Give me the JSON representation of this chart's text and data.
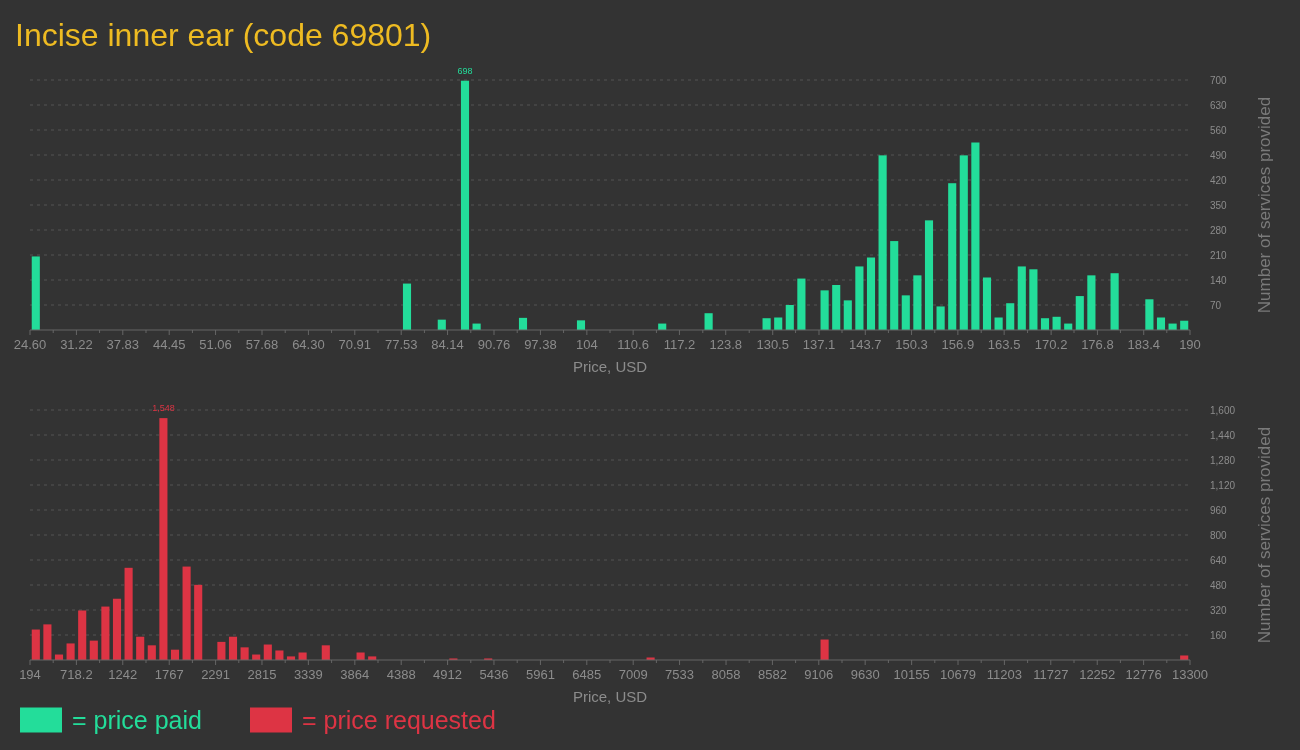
{
  "chart_data": [
    {
      "type": "histogram",
      "title": "Incise inner ear (code 69801)",
      "xlabel": "Price, USD",
      "ylabel": "Number of services provided",
      "bins": [
        24.6,
        26.25,
        27.91,
        29.56,
        31.22,
        32.87,
        34.52,
        36.18,
        37.83,
        39.49,
        41.14,
        42.79,
        44.45,
        46.1,
        47.76,
        49.41,
        51.06,
        52.72,
        54.37,
        56.03,
        57.68,
        59.33,
        60.99,
        62.64,
        64.3,
        65.95,
        67.6,
        69.26,
        70.91,
        72.57,
        74.22,
        75.87,
        77.53,
        79.18,
        80.84,
        82.49,
        84.14,
        85.8,
        87.45,
        89.11,
        90.76,
        92.41,
        94.07,
        95.72,
        97.38,
        99.03,
        100.68,
        102.34,
        103.99,
        105.65,
        107.3,
        108.95,
        110.61,
        112.26,
        113.92,
        115.57,
        117.22,
        118.88,
        120.53,
        122.19,
        123.84,
        125.49,
        127.15,
        128.8,
        130.46,
        132.11,
        133.76,
        135.42,
        137.07,
        138.73,
        140.38,
        142.03,
        143.69,
        145.34,
        147.0,
        148.65,
        150.3,
        151.96,
        153.61,
        155.27,
        156.92,
        158.57,
        160.23,
        161.88,
        163.54,
        165.19,
        166.84,
        168.5,
        170.15,
        171.81,
        173.46,
        175.11,
        176.77,
        178.42,
        180.08,
        181.73,
        183.38,
        185.04,
        186.69,
        188.35,
        190
      ],
      "series": [
        {
          "name": "= price paid",
          "color": "#23dd9a",
          "values": [
            206,
            0,
            0,
            0,
            0,
            0,
            0,
            0,
            0,
            0,
            0,
            0,
            0,
            0,
            0,
            0,
            0,
            0,
            0,
            0,
            0,
            0,
            0,
            0,
            0,
            0,
            0,
            0,
            0,
            0,
            0,
            0,
            130,
            0,
            0,
            29,
            0,
            698,
            18,
            0,
            0,
            0,
            34,
            0,
            0,
            0,
            0,
            27,
            0,
            0,
            0,
            0,
            0,
            0,
            18,
            0,
            0,
            0,
            47,
            0,
            0,
            0,
            0,
            33,
            35,
            70,
            144,
            0,
            111,
            126,
            83,
            178,
            203,
            489,
            249,
            97,
            153,
            307,
            66,
            411,
            489,
            525,
            147,
            35,
            75,
            178,
            170,
            33,
            37,
            18,
            95,
            153,
            0,
            159,
            0,
            0,
            86,
            35,
            18,
            26
          ],
          "value_labels": [
            null,
            null,
            null,
            null,
            null,
            null,
            null,
            null,
            null,
            null,
            null,
            null,
            null,
            null,
            null,
            null,
            null,
            null,
            null,
            null,
            null,
            null,
            null,
            null,
            null,
            null,
            null,
            null,
            null,
            null,
            null,
            null,
            null,
            null,
            null,
            null,
            null,
            "698",
            null,
            null,
            null,
            null,
            null,
            null,
            null,
            null,
            null,
            null,
            null,
            null,
            null,
            null,
            null,
            null,
            null,
            null,
            null,
            null,
            null,
            null,
            null,
            null,
            null,
            null,
            null,
            null,
            null,
            null,
            null,
            null,
            null,
            null,
            null,
            null,
            null,
            null,
            null,
            null,
            null,
            null,
            null,
            null,
            null,
            null,
            null,
            null,
            null,
            null,
            null,
            null,
            null,
            null,
            null,
            null,
            null,
            null,
            null,
            null,
            null,
            null
          ]
        }
      ],
      "xlim": [
        24.6,
        190
      ],
      "xticks": [
        {
          "value": 24.6,
          "label": "24.60"
        },
        {
          "value": 27.91,
          "label": null
        },
        31.22,
        {
          "value": 34.52,
          "label": null
        },
        37.83,
        {
          "value": 41.14,
          "label": null
        },
        44.45,
        {
          "value": 47.76,
          "label": null
        },
        51.06,
        {
          "value": 54.37,
          "label": null
        },
        57.68,
        {
          "value": 60.99,
          "label": null
        },
        {
          "value": 64.3,
          "label": "64.30"
        },
        {
          "value": 67.6,
          "label": null
        },
        70.91,
        {
          "value": 74.22,
          "label": null
        },
        77.53,
        {
          "value": 80.84,
          "label": null
        },
        84.14,
        {
          "value": 87.45,
          "label": null
        },
        90.76,
        {
          "value": 94.07,
          "label": null
        },
        97.38,
        {
          "value": 100.68,
          "label": null
        },
        104,
        {
          "value": 107.3,
          "label": null
        },
        110.6,
        {
          "value": 113.92,
          "label": null
        },
        117.2,
        {
          "value": 120.53,
          "label": null
        },
        123.8,
        {
          "value": 127.15,
          "label": null
        },
        130.5,
        {
          "value": 133.76,
          "label": null
        },
        137.1,
        {
          "value": 140.38,
          "label": null
        },
        143.7,
        {
          "value": 147.0,
          "label": null
        },
        150.3,
        {
          "value": 153.61,
          "label": null
        },
        156.9,
        {
          "value": 160.23,
          "label": null
        },
        163.5,
        {
          "value": 166.84,
          "label": null
        },
        170.2,
        {
          "value": 173.46,
          "label": null
        },
        176.8,
        {
          "value": 180.08,
          "label": null
        },
        183.4,
        {
          "value": 186.69,
          "label": null
        },
        190
      ],
      "ylim": [
        0,
        700
      ],
      "yticks": [
        70,
        140,
        210,
        280,
        350,
        420,
        490,
        560,
        630,
        700
      ],
      "grid": "y",
      "legend": "bottom left"
    },
    {
      "type": "histogram",
      "xlabel": "Price, USD",
      "ylabel": "Number of services provided",
      "bins": [
        194,
        325.1,
        456.1,
        587.2,
        718.2,
        849.3,
        980.4,
        1111.4,
        1242.5,
        1373.5,
        1504.6,
        1635.7,
        1766.7,
        1897.8,
        2028.8,
        2159.9,
        2291,
        2422,
        2553.1,
        2684.1,
        2815.2,
        2946.3,
        3077.3,
        3208.4,
        3339.4,
        3470.5,
        3601.6,
        3732.6,
        3863.7,
        3994.7,
        4125.8,
        4256.9,
        4387.9,
        4519,
        4650,
        4781.1,
        4912.2,
        5043.2,
        5174.3,
        5305.3,
        5436.4,
        5567.5,
        5698.5,
        5829.6,
        5960.6,
        6091.7,
        6222.8,
        6353.8,
        6484.9,
        6615.9,
        6747,
        6878.1,
        7009.1,
        7140.2,
        7271.2,
        7402.3,
        7533.4,
        7664.4,
        7795.5,
        7926.5,
        8057.6,
        8188.7,
        8319.7,
        8450.8,
        8581.8,
        8712.9,
        8844,
        8975,
        9106.1,
        9237.1,
        9368.2,
        9499.3,
        9630.3,
        9761.4,
        9892.4,
        10023.5,
        10154.6,
        10285.6,
        10416.7,
        10547.7,
        10678.8,
        10809.9,
        10940.9,
        11072,
        11203,
        11334.1,
        11465.2,
        11596.2,
        11727.3,
        11858.3,
        11989.4,
        12120.5,
        12251.5,
        12382.6,
        12513.6,
        12644.7,
        12775.8,
        12906.8,
        13037.9,
        13168.9,
        13300
      ],
      "series": [
        {
          "name": "= price requested",
          "color": "#dd3444",
          "values": [
            195,
            228,
            35,
            106,
            317,
            124,
            342,
            392,
            590,
            149,
            94,
            1548,
            66,
            598,
            481,
            0,
            116,
            149,
            81,
            35,
            99,
            61,
            23,
            48,
            0,
            94,
            0,
            0,
            48,
            23,
            0,
            0,
            0,
            0,
            0,
            0,
            10,
            0,
            0,
            10,
            0,
            0,
            0,
            0,
            0,
            0,
            0,
            0,
            0,
            0,
            0,
            0,
            0,
            16,
            0,
            0,
            0,
            0,
            0,
            0,
            0,
            0,
            0,
            0,
            0,
            0,
            0,
            0,
            131,
            0,
            0,
            0,
            0,
            0,
            0,
            0,
            0,
            0,
            0,
            0,
            0,
            0,
            0,
            0,
            0,
            0,
            0,
            0,
            0,
            0,
            0,
            0,
            0,
            0,
            0,
            0,
            0,
            0,
            0,
            29
          ],
          "value_labels": [
            null,
            null,
            null,
            null,
            null,
            null,
            null,
            null,
            null,
            null,
            null,
            "1,548",
            null,
            null,
            null,
            null,
            null,
            null,
            null,
            null,
            null,
            null,
            null,
            null,
            null,
            null,
            null,
            null,
            null,
            null,
            null,
            null,
            null,
            null,
            null,
            null,
            null,
            null,
            null,
            null,
            null,
            null,
            null,
            null,
            null,
            null,
            null,
            null,
            null,
            null,
            null,
            null,
            null,
            null,
            null,
            null,
            null,
            null,
            null,
            null,
            null,
            null,
            null,
            null,
            null,
            null,
            null,
            null,
            null,
            null,
            null,
            null,
            null,
            null,
            null,
            null,
            null,
            null,
            null,
            null,
            null,
            null,
            null,
            null,
            null,
            null,
            null,
            null,
            null,
            null,
            null,
            null,
            null,
            null,
            null,
            null,
            null,
            null,
            null,
            null
          ]
        }
      ],
      "xlim": [
        194,
        13300
      ],
      "xticks": [
        194,
        {
          "value": 456.1,
          "label": null
        },
        718.2,
        {
          "value": 980.4,
          "label": null
        },
        1242,
        {
          "value": 1504.6,
          "label": null
        },
        1767,
        {
          "value": 2028.8,
          "label": null
        },
        2291,
        {
          "value": 2553.1,
          "label": null
        },
        2815,
        {
          "value": 3077.3,
          "label": null
        },
        3339,
        {
          "value": 3601.6,
          "label": null
        },
        3864,
        {
          "value": 4125.8,
          "label": null
        },
        4388,
        {
          "value": 4650,
          "label": null
        },
        4912,
        {
          "value": 5174.3,
          "label": null
        },
        5436,
        {
          "value": 5698.5,
          "label": null
        },
        5961,
        {
          "value": 6222.8,
          "label": null
        },
        6485,
        {
          "value": 6747,
          "label": null
        },
        7009,
        {
          "value": 7271.2,
          "label": null
        },
        7533,
        {
          "value": 7795.5,
          "label": null
        },
        8058,
        {
          "value": 8319.7,
          "label": null
        },
        8582,
        {
          "value": 8844,
          "label": null
        },
        9106,
        {
          "value": 9368.2,
          "label": null
        },
        9630,
        {
          "value": 9892.4,
          "label": null
        },
        10155,
        {
          "value": 10416.7,
          "label": null
        },
        10679,
        {
          "value": 10940.9,
          "label": null
        },
        11203,
        {
          "value": 11465.2,
          "label": null
        },
        11727,
        {
          "value": 11989.4,
          "label": null
        },
        12252,
        {
          "value": 12513.6,
          "label": null
        },
        12776,
        {
          "value": 13037.9,
          "label": null
        },
        13300
      ],
      "ylim": [
        0,
        1600
      ],
      "yticks": [
        160,
        320,
        480,
        640,
        800,
        960,
        {
          "value": 1120,
          "label": "1,120"
        },
        {
          "value": 1280,
          "label": "1,280"
        },
        {
          "value": 1440,
          "label": "1,440"
        },
        {
          "value": 1600,
          "label": "1,600"
        }
      ],
      "grid": "y",
      "legend": "bottom left"
    }
  ]
}
